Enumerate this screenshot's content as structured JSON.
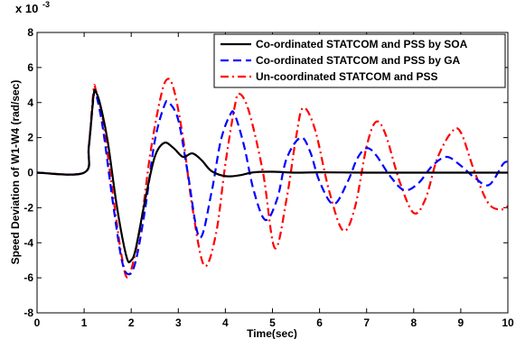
{
  "chart_data": {
    "type": "line",
    "title": "",
    "xlabel": "Time(sec)",
    "ylabel": "Speed Deviation of W1-W4 (rad/sec)",
    "y_multiplier": "x 10",
    "y_exponent": "-3",
    "xlim": [
      0,
      10
    ],
    "ylim": [
      -8,
      8
    ],
    "xticks": [
      "0",
      "1",
      "2",
      "3",
      "4",
      "5",
      "6",
      "7",
      "8",
      "9",
      "10"
    ],
    "yticks": [
      "-8",
      "-6",
      "-4",
      "-2",
      "0",
      "2",
      "4",
      "6",
      "8"
    ],
    "grid": false,
    "legend_position": "top-right",
    "series": [
      {
        "name": "Co-ordinated STATCOM and PSS by SOA",
        "color": "#000000",
        "style": "solid",
        "x": [
          0,
          1.0,
          1.1,
          1.2,
          1.25,
          1.35,
          1.5,
          1.7,
          1.9,
          2.0,
          2.1,
          2.3,
          2.5,
          2.7,
          2.9,
          3.1,
          3.3,
          3.5,
          3.7,
          4.0,
          4.3,
          4.6,
          5.0,
          5.5,
          6.0,
          7.0,
          8.0,
          9.0,
          10.0
        ],
        "y": [
          0,
          0,
          1.5,
          4.4,
          4.6,
          3.8,
          1.8,
          -2.0,
          -4.8,
          -5.0,
          -4.3,
          -1.5,
          0.9,
          1.7,
          1.4,
          0.9,
          1.1,
          0.7,
          0.1,
          -0.2,
          -0.15,
          0.02,
          0.05,
          0.0,
          0.02,
          0.0,
          0.0,
          0.0,
          0.0
        ]
      },
      {
        "name": "Co-ordinated STATCOM and PSS by GA",
        "color": "#0000ff",
        "style": "dashed",
        "x": [
          0,
          1.0,
          1.1,
          1.2,
          1.25,
          1.4,
          1.6,
          1.8,
          1.95,
          2.1,
          2.3,
          2.5,
          2.7,
          2.8,
          3.0,
          3.2,
          3.45,
          3.7,
          3.9,
          4.1,
          4.2,
          4.4,
          4.6,
          4.85,
          5.1,
          5.3,
          5.6,
          5.8,
          6.0,
          6.3,
          6.6,
          6.8,
          7.0,
          7.2,
          7.5,
          7.8,
          8.1,
          8.4,
          8.7,
          9.0,
          9.3,
          9.6,
          9.9,
          10.0
        ],
        "y": [
          0,
          0,
          1.5,
          4.3,
          4.5,
          2.5,
          -1.5,
          -5.0,
          -5.8,
          -5.0,
          -2.0,
          1.8,
          3.8,
          4.0,
          3.0,
          0.0,
          -3.7,
          -1.2,
          1.8,
          3.3,
          3.3,
          1.5,
          -1.0,
          -2.7,
          -1.5,
          0.8,
          2.0,
          1.2,
          -0.5,
          -1.8,
          -0.5,
          0.8,
          1.4,
          1.0,
          -0.2,
          -1.0,
          -0.6,
          0.4,
          0.9,
          0.4,
          -0.3,
          -0.7,
          0.5,
          0.6
        ]
      },
      {
        "name": "Un-coordinated STATCOM and PSS",
        "color": "#ff0000",
        "style": "dashdot",
        "x": [
          0,
          1.0,
          1.1,
          1.2,
          1.25,
          1.4,
          1.6,
          1.8,
          1.95,
          2.2,
          2.4,
          2.6,
          2.75,
          2.9,
          3.1,
          3.3,
          3.55,
          3.8,
          4.0,
          4.2,
          4.3,
          4.5,
          4.8,
          5.05,
          5.3,
          5.5,
          5.65,
          5.9,
          6.2,
          6.5,
          6.75,
          7.0,
          7.2,
          7.4,
          7.7,
          8.0,
          8.25,
          8.5,
          8.8,
          9.0,
          9.3,
          9.6,
          9.9,
          10.0
        ],
        "y": [
          0,
          0,
          1.5,
          4.7,
          4.7,
          3.0,
          -1.0,
          -4.8,
          -5.9,
          -3.0,
          1.0,
          4.0,
          5.3,
          4.8,
          2.0,
          -2.0,
          -5.3,
          -3.5,
          0.5,
          3.8,
          4.5,
          3.5,
          0.0,
          -4.3,
          -1.5,
          2.0,
          3.7,
          2.5,
          -1.0,
          -3.3,
          -2.0,
          1.5,
          2.9,
          2.2,
          -0.5,
          -2.3,
          -1.5,
          0.8,
          2.3,
          2.3,
          0.0,
          -1.8,
          -2.1,
          -1.9
        ]
      }
    ]
  }
}
